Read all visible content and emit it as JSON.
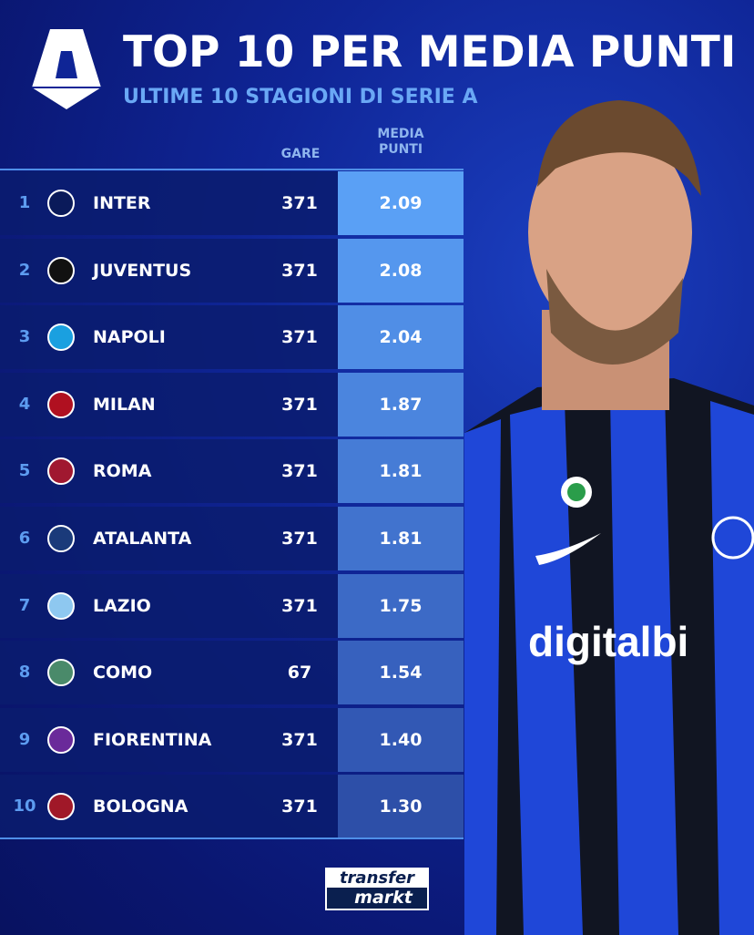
{
  "header": {
    "title": "TOP 10 PER MEDIA PUNTI",
    "subtitle": "ULTIME 10 STAGIONI DI SERIE A",
    "logo": "serie-a-logo"
  },
  "columns": {
    "gare": "GARE",
    "media_punti_1": "MEDIA",
    "media_punti_2": "PUNTI"
  },
  "colors": {
    "accent": "#5aa0f5",
    "background": "#0f2596",
    "row": "#0a1c6e"
  },
  "chart_data": {
    "type": "table",
    "title": "TOP 10 PER MEDIA PUNTI",
    "subtitle": "ULTIME 10 STAGIONI DI SERIE A",
    "columns": [
      "#",
      "Team",
      "GARE",
      "MEDIA PUNTI"
    ],
    "rows": [
      {
        "rank": "1",
        "team": "INTER",
        "gare": "371",
        "media": "2.09",
        "color": "#5aa0f5"
      },
      {
        "rank": "2",
        "team": "JUVENTUS",
        "gare": "371",
        "media": "2.08",
        "color": "#5597ee"
      },
      {
        "rank": "3",
        "team": "NAPOLI",
        "gare": "371",
        "media": "2.04",
        "color": "#508ee6"
      },
      {
        "rank": "4",
        "team": "MILAN",
        "gare": "371",
        "media": "1.87",
        "color": "#4b85de"
      },
      {
        "rank": "5",
        "team": "ROMA",
        "gare": "371",
        "media": "1.81",
        "color": "#467cd6"
      },
      {
        "rank": "6",
        "team": "ATALANTA",
        "gare": "371",
        "media": "1.81",
        "color": "#4173ce"
      },
      {
        "rank": "7",
        "team": "LAZIO",
        "gare": "371",
        "media": "1.75",
        "color": "#3c6ac6"
      },
      {
        "rank": "8",
        "team": "COMO",
        "gare": "67",
        "media": "1.54",
        "color": "#3761be"
      },
      {
        "rank": "9",
        "team": "FIORENTINA",
        "gare": "371",
        "media": "1.40",
        "color": "#3258b4"
      },
      {
        "rank": "10",
        "team": "BOLOGNA",
        "gare": "371",
        "media": "1.30",
        "color": "#2d4fa8"
      }
    ]
  },
  "footer": {
    "brand_1": "transfer",
    "brand_2": "markt"
  }
}
